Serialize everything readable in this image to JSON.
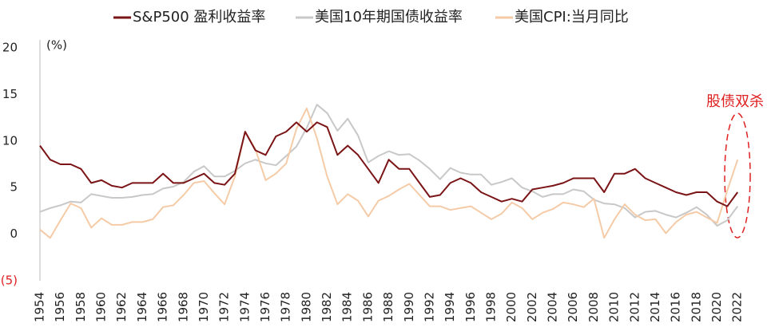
{
  "chart_data": {
    "type": "line",
    "y_label": "(%)",
    "annotation": "股债双杀",
    "x": [
      1954,
      1955,
      1956,
      1957,
      1958,
      1959,
      1960,
      1961,
      1962,
      1963,
      1964,
      1965,
      1966,
      1967,
      1968,
      1969,
      1970,
      1971,
      1972,
      1973,
      1974,
      1975,
      1976,
      1977,
      1978,
      1979,
      1980,
      1981,
      1982,
      1983,
      1984,
      1985,
      1986,
      1987,
      1988,
      1989,
      1990,
      1991,
      1992,
      1993,
      1994,
      1995,
      1996,
      1997,
      1998,
      1999,
      2000,
      2001,
      2002,
      2003,
      2004,
      2005,
      2006,
      2007,
      2008,
      2009,
      2010,
      2011,
      2012,
      2013,
      2014,
      2015,
      2016,
      2017,
      2018,
      2019,
      2020,
      2021,
      2022
    ],
    "series": [
      {
        "name": "S&P500 盈利收益率",
        "color": "#7b1416",
        "values": [
          9.5,
          8,
          7.5,
          7.5,
          7,
          5.5,
          5.8,
          5.2,
          5,
          5.5,
          5.5,
          5.5,
          6.5,
          5.5,
          5.5,
          6,
          6.5,
          5.5,
          5.3,
          6.5,
          11,
          9,
          8.5,
          10.5,
          11,
          12,
          11,
          12,
          11.5,
          8.5,
          9.5,
          8.5,
          7,
          5.5,
          8,
          7,
          7,
          5.5,
          4,
          4.2,
          5.5,
          6,
          5.5,
          4.5,
          4,
          3.5,
          3.8,
          3.5,
          4.8,
          5,
          5.2,
          5.5,
          6,
          6,
          6,
          4.5,
          6.5,
          6.5,
          7,
          6,
          5.5,
          5,
          4.5,
          4.2,
          4.5,
          4.5,
          3.5,
          3,
          4.5
        ]
      },
      {
        "name": "美国10年期国债收益率",
        "color": "#c8c8c8",
        "values": [
          2.4,
          2.8,
          3.1,
          3.5,
          3.4,
          4.3,
          4.1,
          3.9,
          3.9,
          4,
          4.2,
          4.3,
          4.9,
          5.1,
          5.6,
          6.7,
          7.3,
          6.2,
          6.2,
          6.8,
          7.6,
          8,
          7.6,
          7.4,
          8.4,
          9.4,
          11.4,
          13.9,
          13,
          11.1,
          12.4,
          10.6,
          7.7,
          8.4,
          8.9,
          8.5,
          8.6,
          7.9,
          7,
          5.9,
          7.1,
          6.6,
          6.4,
          6.4,
          5.3,
          5.6,
          6,
          5,
          4.6,
          4,
          4.3,
          4.3,
          4.8,
          4.6,
          3.7,
          3.3,
          3.2,
          2.8,
          1.8,
          2.4,
          2.5,
          2.1,
          1.8,
          2.3,
          2.9,
          2.1,
          0.9,
          1.5,
          3
        ]
      },
      {
        "name": "美国CPI:当月同比",
        "color": "#f5cba7",
        "values": [
          0.5,
          -0.4,
          1.5,
          3.3,
          2.8,
          0.7,
          1.7,
          1,
          1,
          1.3,
          1.3,
          1.6,
          2.9,
          3.1,
          4.2,
          5.5,
          5.7,
          4.4,
          3.2,
          6.2,
          11,
          9.1,
          5.8,
          6.5,
          7.6,
          11.3,
          13.5,
          10.3,
          6.2,
          3.2,
          4.3,
          3.6,
          1.9,
          3.6,
          4.1,
          4.8,
          5.4,
          4.2,
          3,
          3,
          2.6,
          2.8,
          3,
          2.3,
          1.6,
          2.2,
          3.4,
          2.8,
          1.6,
          2.3,
          2.7,
          3.4,
          3.2,
          2.9,
          3.8,
          -0.4,
          1.6,
          3.2,
          2.1,
          1.5,
          1.6,
          0.1,
          1.3,
          2.1,
          2.4,
          1.8,
          1.2,
          4.7,
          8
        ]
      }
    ],
    "xlim": [
      1954,
      2023
    ],
    "xticks": [
      1954,
      1956,
      1958,
      1960,
      1962,
      1964,
      1966,
      1968,
      1970,
      1972,
      1974,
      1976,
      1978,
      1980,
      1982,
      1984,
      1986,
      1988,
      1990,
      1992,
      1994,
      1996,
      1998,
      2000,
      2002,
      2004,
      2006,
      2008,
      2010,
      2012,
      2014,
      2016,
      2018,
      2020,
      2022
    ],
    "ylim": [
      -5,
      20
    ],
    "yticks": [
      {
        "value": -5,
        "label": "(5)"
      },
      0,
      5,
      10,
      15,
      20
    ],
    "grid": false
  }
}
